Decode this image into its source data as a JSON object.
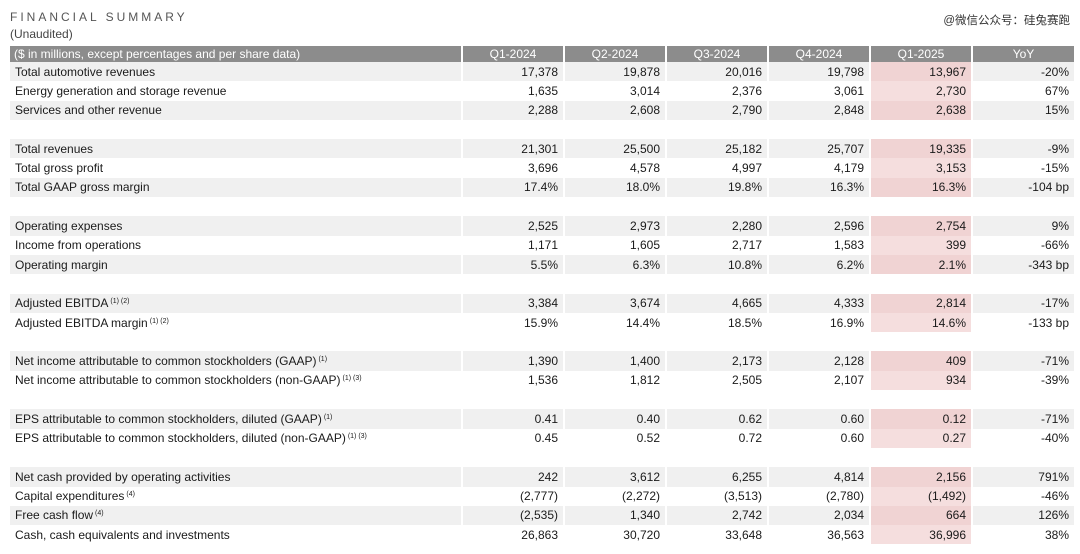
{
  "header": {
    "title": "FINANCIAL SUMMARY",
    "subtitle": "(Unaudited)",
    "watermark": "@微信公众号：硅兔赛跑"
  },
  "table": {
    "columns": [
      "($ in millions, except percentages and per share data)",
      "Q1-2024",
      "Q2-2024",
      "Q3-2024",
      "Q4-2024",
      "Q1-2025",
      "YoY"
    ],
    "highlight_color": "#f5dede",
    "rows": [
      {
        "type": "data",
        "label": "Total automotive revenues",
        "note": "",
        "values": [
          "17,378",
          "19,878",
          "20,016",
          "19,798",
          "13,967",
          "-20%"
        ]
      },
      {
        "type": "data",
        "label": "Energy generation and storage revenue",
        "note": "",
        "values": [
          "1,635",
          "3,014",
          "2,376",
          "3,061",
          "2,730",
          "67%"
        ]
      },
      {
        "type": "data",
        "label": "Services and other revenue",
        "note": "",
        "values": [
          "2,288",
          "2,608",
          "2,790",
          "2,848",
          "2,638",
          "15%"
        ]
      },
      {
        "type": "gap"
      },
      {
        "type": "data",
        "label": "Total revenues",
        "note": "",
        "values": [
          "21,301",
          "25,500",
          "25,182",
          "25,707",
          "19,335",
          "-9%"
        ]
      },
      {
        "type": "data",
        "label": "Total gross profit",
        "note": "",
        "values": [
          "3,696",
          "4,578",
          "4,997",
          "4,179",
          "3,153",
          "-15%"
        ]
      },
      {
        "type": "data",
        "label": "Total GAAP gross margin",
        "note": "",
        "values": [
          "17.4%",
          "18.0%",
          "19.8%",
          "16.3%",
          "16.3%",
          "-104 bp"
        ]
      },
      {
        "type": "gap"
      },
      {
        "type": "data",
        "label": "Operating expenses",
        "note": "",
        "values": [
          "2,525",
          "2,973",
          "2,280",
          "2,596",
          "2,754",
          "9%"
        ]
      },
      {
        "type": "data",
        "label": "Income from operations",
        "note": "",
        "values": [
          "1,171",
          "1,605",
          "2,717",
          "1,583",
          "399",
          "-66%"
        ]
      },
      {
        "type": "data",
        "label": "Operating margin",
        "note": "",
        "values": [
          "5.5%",
          "6.3%",
          "10.8%",
          "6.2%",
          "2.1%",
          "-343 bp"
        ]
      },
      {
        "type": "gap"
      },
      {
        "type": "data",
        "label": "Adjusted EBITDA",
        "note": "(1) (2)",
        "values": [
          "3,384",
          "3,674",
          "4,665",
          "4,333",
          "2,814",
          "-17%"
        ]
      },
      {
        "type": "data",
        "label": "Adjusted EBITDA margin",
        "note": "(1) (2)",
        "values": [
          "15.9%",
          "14.4%",
          "18.5%",
          "16.9%",
          "14.6%",
          "-133 bp"
        ]
      },
      {
        "type": "gap"
      },
      {
        "type": "data",
        "label": "Net income attributable to common stockholders (GAAP)",
        "note": "(1)",
        "values": [
          "1,390",
          "1,400",
          "2,173",
          "2,128",
          "409",
          "-71%"
        ]
      },
      {
        "type": "data",
        "label": "Net income attributable to common stockholders (non-GAAP)",
        "note": "(1) (3)",
        "values": [
          "1,536",
          "1,812",
          "2,505",
          "2,107",
          "934",
          "-39%"
        ]
      },
      {
        "type": "gap"
      },
      {
        "type": "data",
        "label": "EPS attributable to common stockholders, diluted (GAAP)",
        "note": "(1)",
        "values": [
          "0.41",
          "0.40",
          "0.62",
          "0.60",
          "0.12",
          "-71%"
        ]
      },
      {
        "type": "data",
        "label": "EPS attributable to common stockholders, diluted (non-GAAP)",
        "note": "(1) (3)",
        "values": [
          "0.45",
          "0.52",
          "0.72",
          "0.60",
          "0.27",
          "-40%"
        ]
      },
      {
        "type": "gap"
      },
      {
        "type": "data",
        "label": "Net cash provided by operating activities",
        "note": "",
        "values": [
          "242",
          "3,612",
          "6,255",
          "4,814",
          "2,156",
          "791%"
        ]
      },
      {
        "type": "data",
        "label": "Capital expenditures",
        "note": "(4)",
        "values": [
          "(2,777)",
          "(2,272)",
          "(3,513)",
          "(2,780)",
          "(1,492)",
          "-46%"
        ]
      },
      {
        "type": "data",
        "label": "Free cash flow",
        "note": "(4)",
        "values": [
          "(2,535)",
          "1,340",
          "2,742",
          "2,034",
          "664",
          "126%"
        ]
      },
      {
        "type": "data",
        "label": "Cash, cash equivalents and investments",
        "note": "",
        "values": [
          "26,863",
          "30,720",
          "33,648",
          "36,563",
          "36,996",
          "38%"
        ]
      }
    ]
  }
}
